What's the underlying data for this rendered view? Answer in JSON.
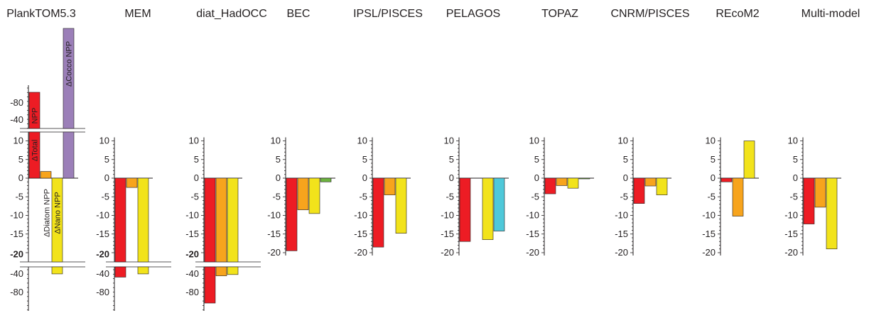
{
  "chart_data": {
    "type": "bar",
    "colors": {
      "total_npp": "#ed1c24",
      "diatom_npp": "#f7a41d",
      "nano_npp": "#f2e31b",
      "cocco_npp": "#9b7fb8",
      "green": "#6cb33f",
      "cyan": "#4ec8d9",
      "axis": "#231f20"
    },
    "annotations": {
      "total": "ΔTotal",
      "npp": "NPP",
      "diatom": "ΔDiatom NPP",
      "nano": "ΔNano NPP",
      "cocco": "ΔCocco NPP"
    },
    "models": [
      {
        "name": "PlankTOM5.3",
        "yticks_main": [
          "10",
          "5",
          "0",
          "-5",
          "-10",
          "-15",
          "-20"
        ],
        "upper_ticks": [
          "-80",
          "-40"
        ],
        "lower_ticks": [
          "-40",
          "-80"
        ],
        "bars": [
          {
            "value": 95,
            "color": "total_npp",
            "broken": "up"
          },
          {
            "value": 1.8,
            "color": "diatom_npp"
          },
          {
            "value": -41,
            "color": "nano_npp",
            "broken": "down"
          },
          {
            "value": 190,
            "color": "cocco_npp",
            "broken": "up"
          }
        ]
      },
      {
        "name": "MEM",
        "yticks_main": [
          "10",
          "5",
          "0",
          "-5",
          "-10",
          "-15",
          "-20"
        ],
        "lower_ticks": [
          "-40",
          "-80"
        ],
        "bars": [
          {
            "value": -46,
            "color": "total_npp",
            "broken": "down"
          },
          {
            "value": -2.5,
            "color": "diatom_npp"
          },
          {
            "value": -41,
            "color": "nano_npp",
            "broken": "down"
          }
        ]
      },
      {
        "name": "diat_HadOCC",
        "yticks_main": [
          "10",
          "5",
          "0",
          "-5",
          "-10",
          "-15",
          "-20"
        ],
        "lower_ticks": [
          "-40",
          "-80"
        ],
        "bars": [
          {
            "value": -86,
            "color": "total_npp",
            "broken": "down"
          },
          {
            "value": -44,
            "color": "diatom_npp",
            "broken": "down"
          },
          {
            "value": -42,
            "color": "nano_npp",
            "broken": "down"
          }
        ]
      },
      {
        "name": "BEC",
        "yticks_main": [
          "10",
          "5",
          "0",
          "-5",
          "-10",
          "-15",
          "-20"
        ],
        "bars": [
          {
            "value": -19.5,
            "color": "total_npp"
          },
          {
            "value": -8.5,
            "color": "diatom_npp"
          },
          {
            "value": -9.5,
            "color": "nano_npp"
          },
          {
            "value": -1,
            "color": "green"
          }
        ]
      },
      {
        "name": "IPSL/PISCES",
        "yticks_main": [
          "10",
          "5",
          "0",
          "-5",
          "-10",
          "-15",
          "-20"
        ],
        "bars": [
          {
            "value": -18.5,
            "color": "total_npp"
          },
          {
            "value": -4.5,
            "color": "diatom_npp"
          },
          {
            "value": -14.8,
            "color": "nano_npp"
          }
        ]
      },
      {
        "name": "PELAGOS",
        "yticks_main": [
          "10",
          "5",
          "0",
          "-5",
          "-10",
          "-15",
          "-20"
        ],
        "bars": [
          {
            "value": -17,
            "color": "total_npp"
          },
          {
            "value": 0,
            "color": "diatom_npp"
          },
          {
            "value": -16.5,
            "color": "nano_npp"
          },
          {
            "value": -14.2,
            "color": "cyan"
          }
        ]
      },
      {
        "name": "TOPAZ",
        "yticks_main": [
          "10",
          "5",
          "0",
          "-5",
          "-10",
          "-15",
          "-20"
        ],
        "bars": [
          {
            "value": -4.2,
            "color": "total_npp"
          },
          {
            "value": -2,
            "color": "diatom_npp"
          },
          {
            "value": -2.7,
            "color": "nano_npp"
          },
          {
            "value": -0.2,
            "color": "green"
          }
        ]
      },
      {
        "name": "CNRM/PISCES",
        "yticks_main": [
          "10",
          "5",
          "0",
          "-5",
          "-10",
          "-15",
          "-20"
        ],
        "bars": [
          {
            "value": -6.8,
            "color": "total_npp"
          },
          {
            "value": -2.1,
            "color": "diatom_npp"
          },
          {
            "value": -4.5,
            "color": "nano_npp"
          }
        ]
      },
      {
        "name": "REcoM2",
        "yticks_main": [
          "10",
          "5",
          "0",
          "-5",
          "-10",
          "-15",
          "-20"
        ],
        "bars": [
          {
            "value": -1,
            "color": "total_npp"
          },
          {
            "value": -10.2,
            "color": "diatom_npp"
          },
          {
            "value": 10,
            "color": "nano_npp"
          }
        ]
      },
      {
        "name": "Multi-model",
        "yticks_main": [
          "10",
          "5",
          "0",
          "-5",
          "-10",
          "-15",
          "-20"
        ],
        "bars": [
          {
            "value": -12.3,
            "color": "total_npp"
          },
          {
            "value": -7.8,
            "color": "diatom_npp"
          },
          {
            "value": -19,
            "color": "nano_npp"
          }
        ]
      }
    ]
  }
}
